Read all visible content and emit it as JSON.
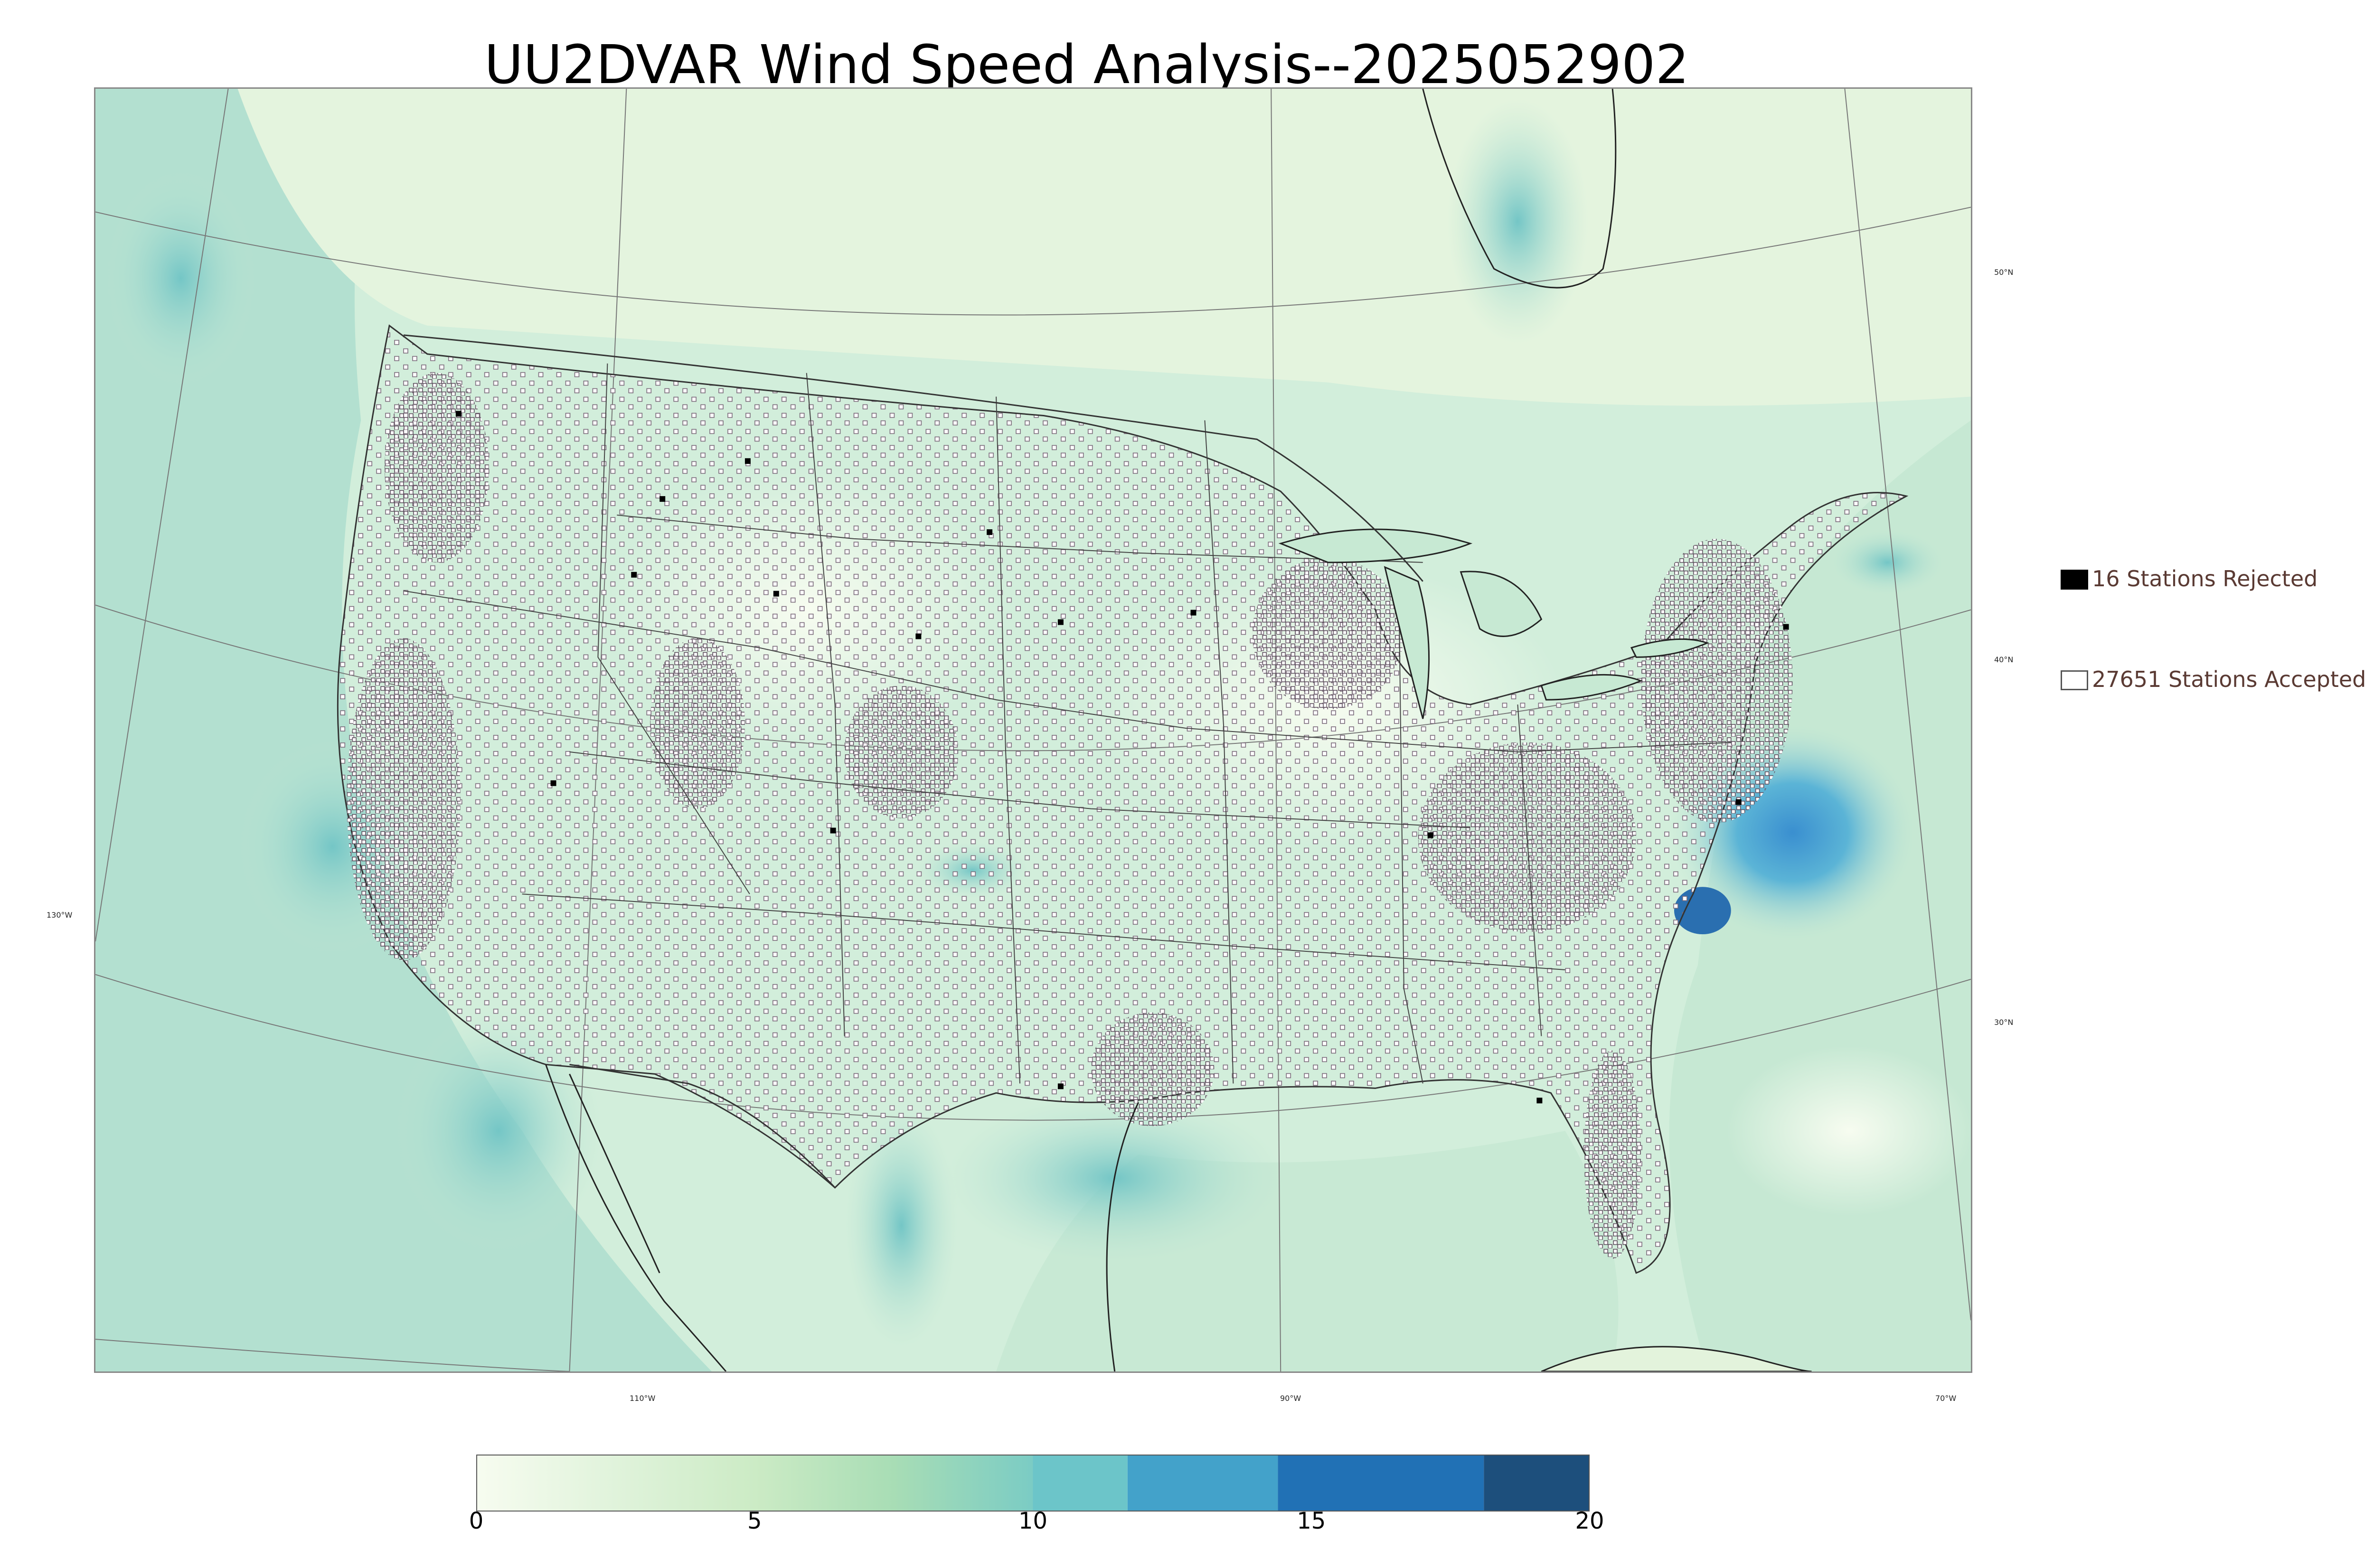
{
  "title": "UU2DVAR Wind Speed Analysis--2025052902",
  "lat_labels": [
    "50°N",
    "40°N",
    "30°N"
  ],
  "lon_labels": [
    "130°W",
    "110°W",
    "90°W",
    "70°W"
  ],
  "legend": {
    "rejected": {
      "label": "16 Stations Rejected",
      "color": "#000000"
    },
    "accepted": {
      "label": "27651 Stations Accepted",
      "color": "#ffffff"
    }
  },
  "colorbar": {
    "ticks": [
      "0",
      "5",
      "10",
      "15",
      "20"
    ],
    "range": [
      0,
      20
    ],
    "bands": [
      {
        "from": 0,
        "to": 10,
        "gradient": [
          "#f7fcf0",
          "#e0f3db",
          "#ccebc5",
          "#a8ddb5",
          "#7bccc4"
        ]
      },
      {
        "from": 10,
        "to": 11.7,
        "color": "#6cc5c9"
      },
      {
        "from": 11.7,
        "to": 14.4,
        "color": "#43a2ca"
      },
      {
        "from": 14.4,
        "to": 18.1,
        "color": "#2171b5"
      },
      {
        "from": 18.1,
        "to": 20,
        "color": "#1d4f7c"
      }
    ]
  },
  "colors": {
    "land_base": "#e6f5dc",
    "ocean_base": "#c9ead2",
    "station_marker": "#8a7a8a",
    "border": "#333333",
    "graticule": "#777777"
  }
}
